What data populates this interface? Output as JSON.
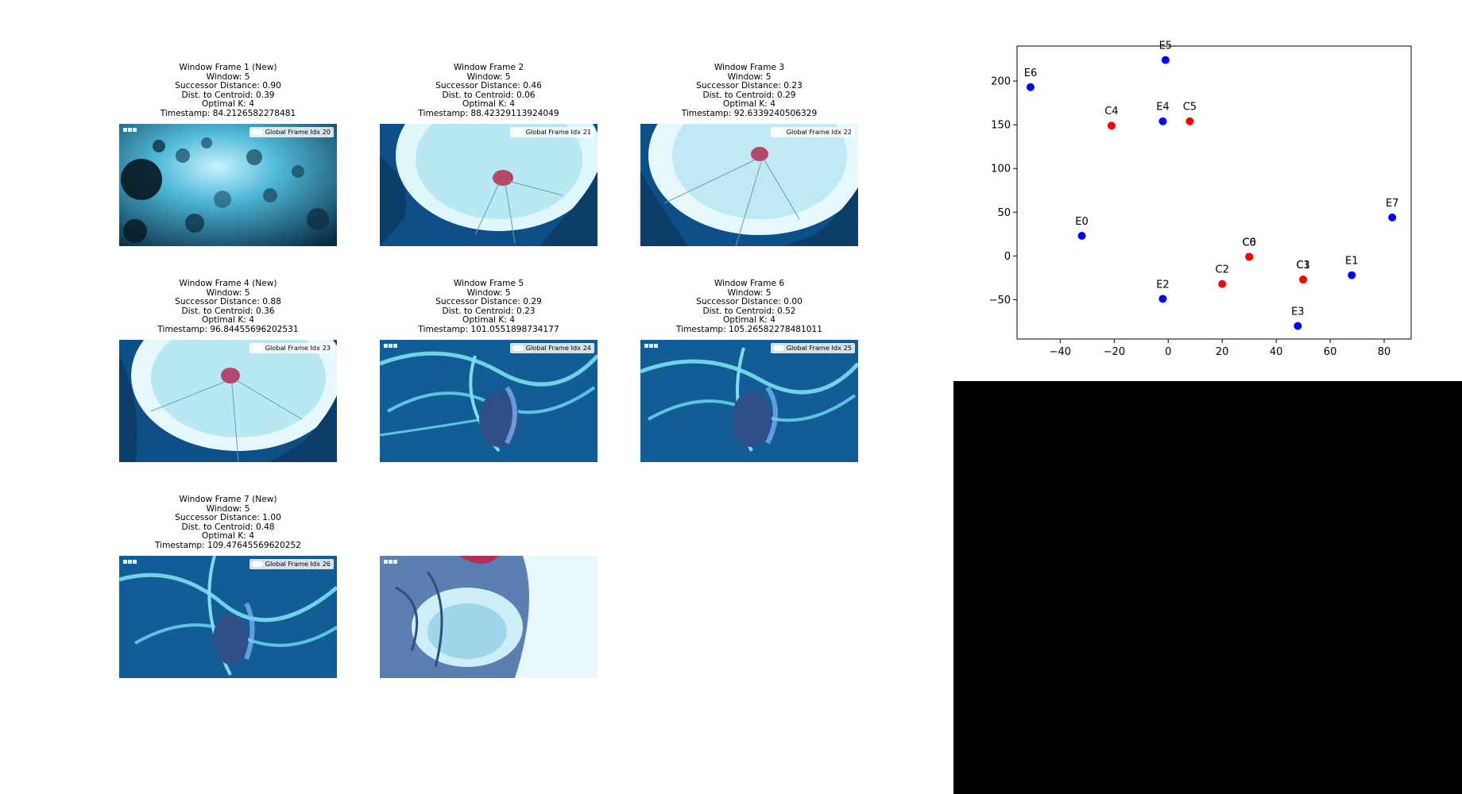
{
  "frames": [
    {
      "title": "Window Frame 1 (New)",
      "window": "Window: 5",
      "successor": "Successor Distance: 0.90",
      "centroid": "Dist. to Centroid: 0.39",
      "optimal_k": "Optimal K: 4",
      "timestamp": "Timestamp: 84.2126582278481",
      "label": "Global Frame Idx 20",
      "scene": "jellyfish-swarm-icon"
    },
    {
      "title": "Window Frame 2",
      "window": "Window: 5",
      "successor": "Successor Distance: 0.46",
      "centroid": "Dist. to Centroid: 0.06",
      "optimal_k": "Optimal K: 4",
      "timestamp": "Timestamp: 88.42329113924049",
      "label": "Global Frame Idx 21",
      "scene": "jellyfish-surface-icon"
    },
    {
      "title": "Window Frame 3",
      "window": "Window: 5",
      "successor": "Successor Distance: 0.23",
      "centroid": "Dist. to Centroid: 0.29",
      "optimal_k": "Optimal K: 4",
      "timestamp": "Timestamp: 92.6339240506329",
      "label": "Global Frame Idx 22",
      "scene": "jellyfish-surface-icon"
    },
    {
      "title": "Window Frame 4 (New)",
      "window": "Window: 5",
      "successor": "Successor Distance: 0.88",
      "centroid": "Dist. to Centroid: 0.36",
      "optimal_k": "Optimal K: 4",
      "timestamp": "Timestamp: 96.84455696202531",
      "label": "Global Frame Idx 23",
      "scene": "jellyfish-surface-icon"
    },
    {
      "title": "Window Frame 5",
      "window": "Window: 5",
      "successor": "Successor Distance: 0.29",
      "centroid": "Dist. to Centroid: 0.23",
      "optimal_k": "Optimal K: 4",
      "timestamp": "Timestamp: 101.0551898734177",
      "label": "Global Frame Idx 24",
      "scene": "tentacles-icon"
    },
    {
      "title": "Window Frame 6",
      "window": "Window: 5",
      "successor": "Successor Distance: 0.00",
      "centroid": "Dist. to Centroid: 0.52",
      "optimal_k": "Optimal K: 4",
      "timestamp": "Timestamp: 105.26582278481011",
      "label": "Global Frame Idx 25",
      "scene": "tentacles-icon"
    },
    {
      "title": "Window Frame 7 (New)",
      "window": "Window: 5",
      "successor": "Successor Distance: 1.00",
      "centroid": "Dist. to Centroid: 0.48",
      "optimal_k": "Optimal K: 4",
      "timestamp": "Timestamp: 109.47645569620252",
      "label": "Global Frame Idx 26",
      "scene": "tentacles-icon"
    }
  ],
  "extra_thumbnail": {
    "scene": "jellyfish-closeup-icon"
  },
  "colors": {
    "embedding": "#0000ff",
    "centroid": "#ff0000",
    "black_panel": "#000000"
  },
  "chart_data": {
    "type": "scatter",
    "title": "",
    "xlabel": "",
    "ylabel": "",
    "xlim": [
      -56,
      90
    ],
    "ylim": [
      -95,
      240
    ],
    "xticks": [
      -40,
      -20,
      0,
      20,
      40,
      60,
      80
    ],
    "yticks": [
      -50,
      0,
      50,
      100,
      150,
      200
    ],
    "grid": false,
    "series": [
      {
        "color": "#0000ff",
        "points": [
          {
            "label": "E0",
            "x": -32,
            "y": 23
          },
          {
            "label": "E1",
            "x": 68,
            "y": -22
          },
          {
            "label": "E2",
            "x": -2,
            "y": -49
          },
          {
            "label": "E3",
            "x": 48,
            "y": -80
          },
          {
            "label": "E4",
            "x": -2,
            "y": 154
          },
          {
            "label": "E5",
            "x": -1,
            "y": 224
          },
          {
            "label": "E6",
            "x": -51,
            "y": 193
          },
          {
            "label": "E7",
            "x": 83,
            "y": 44
          }
        ]
      },
      {
        "color": "#ff0000",
        "points": [
          {
            "label": "C0",
            "x": 30,
            "y": -1
          },
          {
            "label": "C1",
            "x": 50,
            "y": -27
          },
          {
            "label": "C2",
            "x": 20,
            "y": -32
          },
          {
            "label": "C3",
            "x": 50,
            "y": -27
          },
          {
            "label": "C4",
            "x": -21,
            "y": 149
          },
          {
            "label": "C5",
            "x": 8,
            "y": 154
          },
          {
            "label": "C6",
            "x": 30,
            "y": -1
          }
        ]
      }
    ]
  }
}
